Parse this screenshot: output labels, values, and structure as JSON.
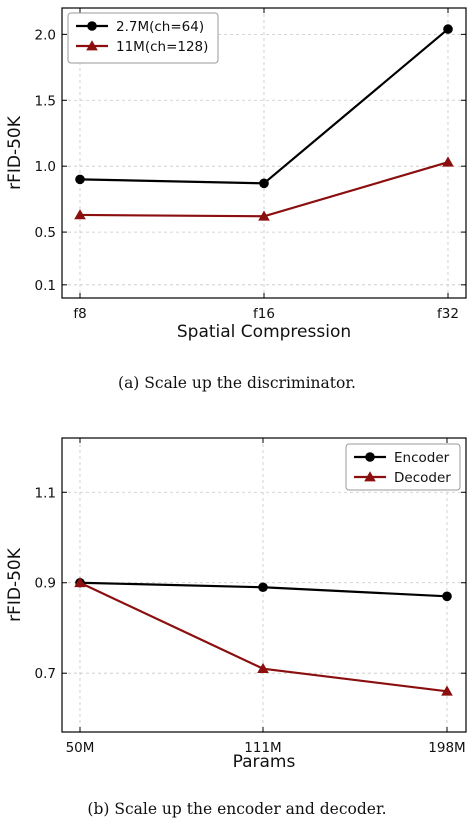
{
  "chart_data": [
    {
      "type": "line",
      "title": "",
      "xlabel": "Spatial Compression",
      "ylabel": "rFID-50K",
      "categories": [
        "f8",
        "f16",
        "f32"
      ],
      "yticks": [
        "0.1",
        "0.5",
        "1.0",
        "1.5",
        "2.0"
      ],
      "ytick_values": [
        0.1,
        0.5,
        1.0,
        1.5,
        2.0
      ],
      "ylim": [
        0.0,
        2.2
      ],
      "grid": true,
      "legend_position": "top-left",
      "series": [
        {
          "name": "2.7M(ch=64)",
          "values": [
            0.9,
            0.87,
            2.04
          ],
          "color": "#000000",
          "marker": "circle"
        },
        {
          "name": "11M(ch=128)",
          "values": [
            0.63,
            0.62,
            1.03
          ],
          "color": "#8b0f0f",
          "marker": "triangle"
        }
      ],
      "caption": "(a)  Scale up the discriminator."
    },
    {
      "type": "line",
      "title": "",
      "xlabel": "Params",
      "ylabel": "rFID-50K",
      "categories": [
        "50M",
        "111M",
        "198M"
      ],
      "yticks": [
        "0.7",
        "0.9",
        "1.1"
      ],
      "ytick_values": [
        0.7,
        0.9,
        1.1
      ],
      "ylim": [
        0.57,
        1.22
      ],
      "grid": true,
      "legend_position": "top-right",
      "series": [
        {
          "name": "Encoder",
          "values": [
            0.9,
            0.89,
            0.87
          ],
          "color": "#000000",
          "marker": "circle"
        },
        {
          "name": "Decoder",
          "values": [
            0.9,
            0.71,
            0.66
          ],
          "color": "#8b0f0f",
          "marker": "triangle"
        }
      ],
      "caption": "(b)  Scale up the encoder and decoder."
    }
  ]
}
